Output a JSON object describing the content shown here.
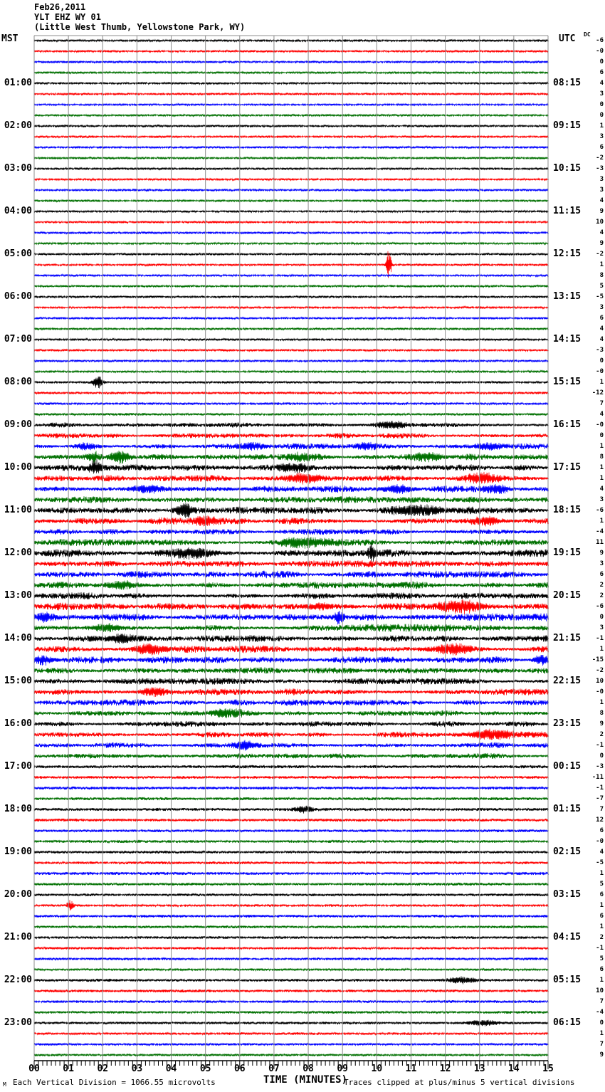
{
  "header": {
    "date": "Feb26,2011",
    "station": "YLT EHZ WY 01",
    "location": "(Little West Thumb, Yellowstone Park, WY)"
  },
  "axes": {
    "left_label": "MST",
    "right_label": "UTC",
    "dc_label": "DC",
    "x_title": "TIME (MINUTES)",
    "x_ticks": [
      "00",
      "01",
      "02",
      "03",
      "04",
      "05",
      "06",
      "07",
      "08",
      "09",
      "10",
      "11",
      "12",
      "13",
      "14",
      "15"
    ]
  },
  "footer": {
    "corner_mark": "M",
    "scale_note": "Each Vertical Division = 1066.55 microvolts",
    "clip_note": "Traces clipped at plus/minus 5 vertical divisions"
  },
  "chart_data": {
    "type": "helicorder",
    "x_range_minutes": [
      0,
      15
    ],
    "minutes_per_line": 15,
    "rows_per_hour": 4,
    "num_rows": 96,
    "grid": {
      "vertical_every_minutes": 1,
      "color": "#8c8c8c"
    },
    "colors": {
      "black": "#000000",
      "red": "#ff0000",
      "blue": "#0000ff",
      "green": "#007000"
    },
    "color_cycle": [
      "black",
      "red",
      "blue",
      "green"
    ],
    "left_labels_mst": [
      "01:00",
      "02:00",
      "03:00",
      "04:00",
      "05:00",
      "06:00",
      "07:00",
      "08:00",
      "09:00",
      "10:00",
      "11:00",
      "12:00",
      "13:00",
      "14:00",
      "15:00",
      "16:00",
      "17:00",
      "18:00",
      "19:00",
      "20:00",
      "21:00",
      "22:00",
      "23:00"
    ],
    "right_labels_utc": [
      "08:15",
      "09:15",
      "10:15",
      "11:15",
      "12:15",
      "13:15",
      "14:15",
      "15:15",
      "16:15",
      "17:15",
      "18:15",
      "19:15",
      "20:15",
      "21:15",
      "22:15",
      "23:15",
      "00:15",
      "01:15",
      "02:15",
      "03:15",
      "04:15",
      "05:15",
      "06:15"
    ],
    "dc_offsets": [
      "-6",
      "-0",
      "0",
      "6",
      "4",
      "3",
      "0",
      "0",
      "1",
      "3",
      "6",
      "-2",
      "-3",
      "3",
      "3",
      "4",
      "9",
      "10",
      "4",
      "9",
      "-2",
      "1",
      "8",
      "5",
      "-5",
      "3",
      "6",
      "4",
      "4",
      "-3",
      "0",
      "-0",
      "1",
      "-12",
      "7",
      "4",
      "-0",
      "0",
      "1",
      "8",
      "1",
      "1",
      "4",
      "3",
      "-6",
      "1",
      "-4",
      "11",
      "9",
      "3",
      "6",
      "2",
      "2",
      "-6",
      "0",
      "3",
      "-1",
      "1",
      "-15",
      "-2",
      "10",
      "-0",
      "1",
      "8",
      "9",
      "2",
      "-1",
      "0",
      "-3",
      "-11",
      "-1",
      "-7",
      "7",
      "12",
      "6",
      "-0",
      "4",
      "-5",
      "1",
      "5",
      "6",
      "1",
      "6",
      "1",
      "2",
      "-1",
      "5",
      "6",
      "1",
      "10",
      "7",
      "-4",
      "0",
      "1",
      "7",
      "9"
    ],
    "noise_amp": [
      1.6,
      1.5,
      1.5,
      1.5,
      1.5,
      1.5,
      1.4,
      1.5,
      1.5,
      1.6,
      1.5,
      1.5,
      1.5,
      1.5,
      1.5,
      1.5,
      1.5,
      1.5,
      1.6,
      1.5,
      1.5,
      1.5,
      1.5,
      1.5,
      1.5,
      1.5,
      1.5,
      1.5,
      1.5,
      1.6,
      1.5,
      1.6,
      1.6,
      1.7,
      1.7,
      1.7,
      2.2,
      2.4,
      2.7,
      2.7,
      3.0,
      3.0,
      3.0,
      2.9,
      3.1,
      3.0,
      2.9,
      3.0,
      3.2,
      3.1,
      3.0,
      3.1,
      3.1,
      3.2,
      3.3,
      3.2,
      3.1,
      3.2,
      3.2,
      3.1,
      2.8,
      2.8,
      2.7,
      2.7,
      2.6,
      2.6,
      2.5,
      2.4,
      2.1,
      2.0,
      2.0,
      2.0,
      2.0,
      2.0,
      1.9,
      1.9,
      1.9,
      1.9,
      2.0,
      1.9,
      1.8,
      1.8,
      1.8,
      1.8,
      1.8,
      1.7,
      1.7,
      1.7,
      1.9,
      1.9,
      1.8,
      1.8,
      1.7,
      1.7,
      1.7,
      1.6
    ],
    "events": [
      {
        "row": 21,
        "minute": 10.35,
        "amp": 22,
        "width": 0.05
      },
      {
        "row": 32,
        "minute": 1.85,
        "amp": 9,
        "width": 0.1
      },
      {
        "row": 36,
        "minute": 10.4,
        "amp": 4,
        "width": 0.3
      },
      {
        "row": 38,
        "minute": 1.5,
        "amp": 4,
        "width": 0.25
      },
      {
        "row": 38,
        "minute": 6.4,
        "amp": 4,
        "width": 0.25
      },
      {
        "row": 38,
        "minute": 9.7,
        "amp": 4,
        "width": 0.2
      },
      {
        "row": 38,
        "minute": 13.3,
        "amp": 5,
        "width": 0.3
      },
      {
        "row": 39,
        "minute": 1.75,
        "amp": 7,
        "width": 0.12
      },
      {
        "row": 39,
        "minute": 2.5,
        "amp": 8,
        "width": 0.2
      },
      {
        "row": 39,
        "minute": 7.8,
        "amp": 4,
        "width": 0.3
      },
      {
        "row": 39,
        "minute": 11.5,
        "amp": 5,
        "width": 0.35
      },
      {
        "row": 40,
        "minute": 1.8,
        "amp": 9,
        "width": 0.12
      },
      {
        "row": 40,
        "minute": 7.6,
        "amp": 5,
        "width": 0.3
      },
      {
        "row": 41,
        "minute": 7.9,
        "amp": 6,
        "width": 0.35
      },
      {
        "row": 41,
        "minute": 13.1,
        "amp": 5,
        "width": 0.3
      },
      {
        "row": 42,
        "minute": 3.3,
        "amp": 5,
        "width": 0.3
      },
      {
        "row": 42,
        "minute": 10.6,
        "amp": 6,
        "width": 0.3
      },
      {
        "row": 42,
        "minute": 13.5,
        "amp": 6,
        "width": 0.25
      },
      {
        "row": 44,
        "minute": 4.4,
        "amp": 7,
        "width": 0.15
      },
      {
        "row": 44,
        "minute": 11.3,
        "amp": 7,
        "width": 0.5
      },
      {
        "row": 45,
        "minute": 5.0,
        "amp": 4,
        "width": 0.3
      },
      {
        "row": 45,
        "minute": 13.2,
        "amp": 6,
        "width": 0.3
      },
      {
        "row": 47,
        "minute": 7.9,
        "amp": 6,
        "width": 0.5
      },
      {
        "row": 48,
        "minute": 4.6,
        "amp": 5,
        "width": 0.4
      },
      {
        "row": 48,
        "minute": 9.85,
        "amp": 12,
        "width": 0.07
      },
      {
        "row": 51,
        "minute": 2.6,
        "amp": 5,
        "width": 0.3
      },
      {
        "row": 53,
        "minute": 8.3,
        "amp": 4,
        "width": 0.3
      },
      {
        "row": 53,
        "minute": 12.5,
        "amp": 8,
        "width": 0.45
      },
      {
        "row": 54,
        "minute": 0.3,
        "amp": 5,
        "width": 0.2
      },
      {
        "row": 54,
        "minute": 8.9,
        "amp": 9,
        "width": 0.1
      },
      {
        "row": 55,
        "minute": 2.1,
        "amp": 5,
        "width": 0.3
      },
      {
        "row": 56,
        "minute": 2.5,
        "amp": 5,
        "width": 0.3
      },
      {
        "row": 57,
        "minute": 3.4,
        "amp": 7,
        "width": 0.3
      },
      {
        "row": 57,
        "minute": 12.2,
        "amp": 7,
        "width": 0.35
      },
      {
        "row": 58,
        "minute": 0.25,
        "amp": 6,
        "width": 0.15
      },
      {
        "row": 58,
        "minute": 14.8,
        "amp": 6,
        "width": 0.15
      },
      {
        "row": 61,
        "minute": 3.5,
        "amp": 6,
        "width": 0.3
      },
      {
        "row": 63,
        "minute": 5.6,
        "amp": 5,
        "width": 0.35
      },
      {
        "row": 65,
        "minute": 13.4,
        "amp": 6,
        "width": 0.4
      },
      {
        "row": 66,
        "minute": 6.1,
        "amp": 6,
        "width": 0.25
      },
      {
        "row": 72,
        "minute": 7.9,
        "amp": 4,
        "width": 0.2
      },
      {
        "row": 81,
        "minute": 1.05,
        "amp": 8,
        "width": 0.06
      },
      {
        "row": 88,
        "minute": 12.5,
        "amp": 4,
        "width": 0.3
      },
      {
        "row": 92,
        "minute": 13.1,
        "amp": 4,
        "width": 0.3
      }
    ]
  }
}
